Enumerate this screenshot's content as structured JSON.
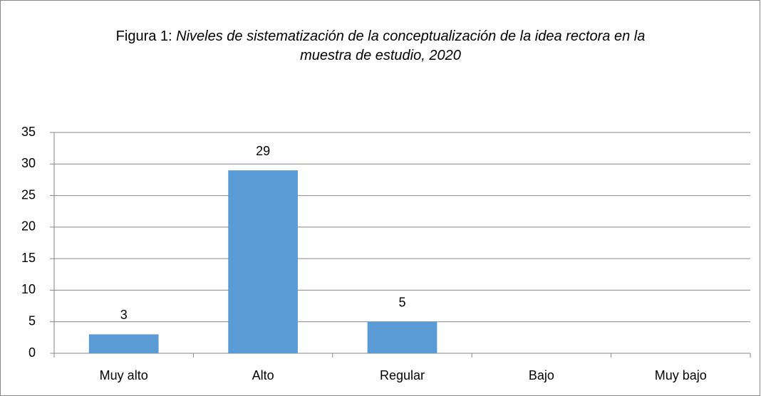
{
  "chart_data": {
    "type": "bar",
    "title_label": "Figura 1:",
    "title": "Niveles de sistematización de la conceptualización de la idea rectora en la muestra de estudio, 2020",
    "categories": [
      "Muy alto",
      "Alto",
      "Regular",
      "Bajo",
      "Muy bajo"
    ],
    "values": [
      3,
      29,
      5,
      null,
      null
    ],
    "color": "#5b9bd5",
    "ylim": [
      0,
      35
    ],
    "yticks": [
      0,
      5,
      10,
      15,
      20,
      25,
      30,
      35
    ],
    "grid": true
  }
}
